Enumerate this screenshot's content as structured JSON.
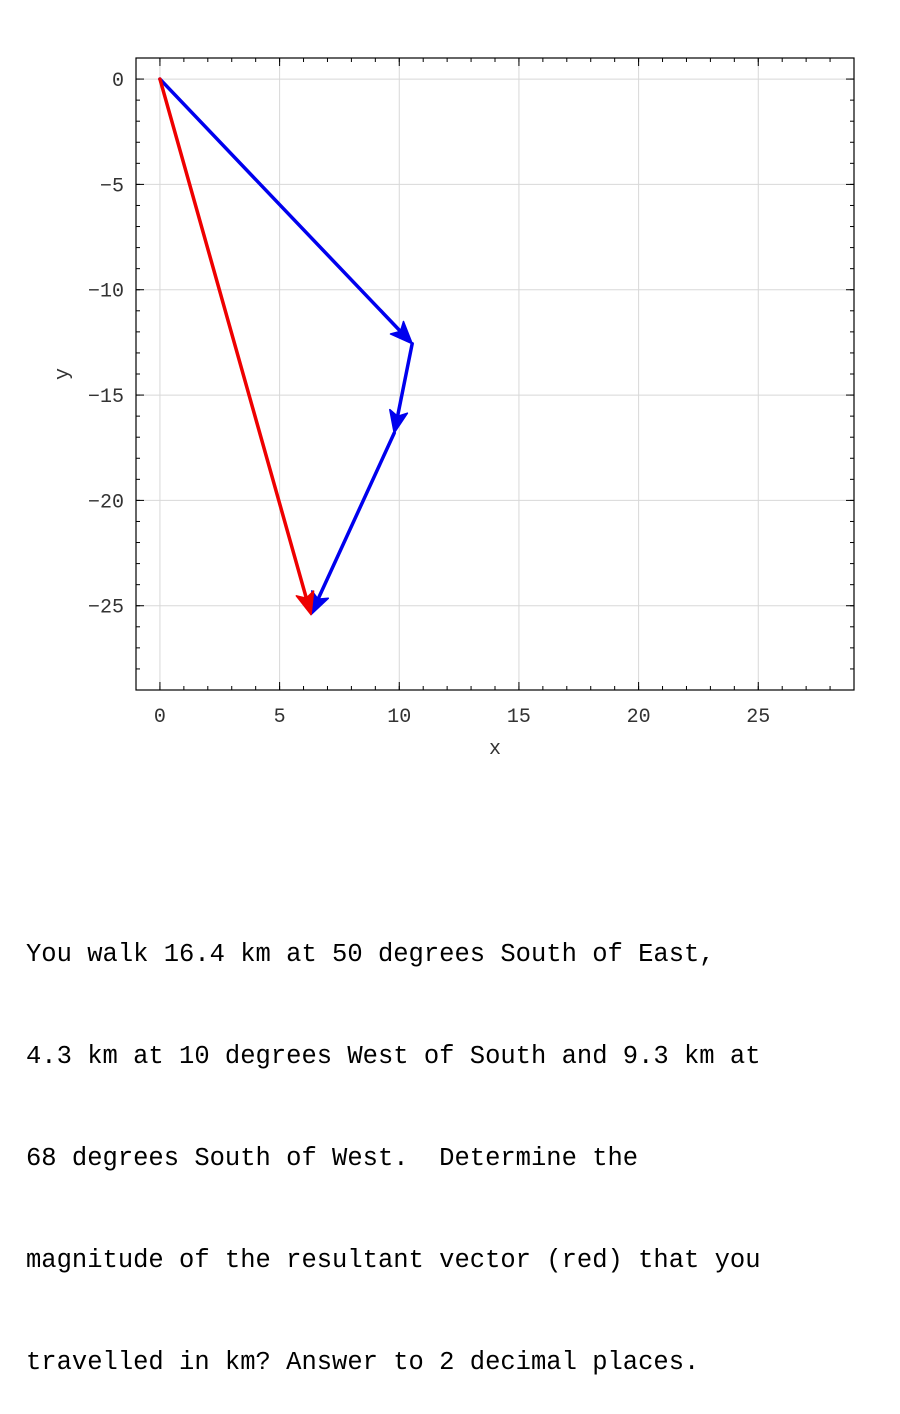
{
  "chart_data": {
    "type": "vector-diagram",
    "xlabel": "x",
    "ylabel": "y",
    "xlim": [
      -1,
      29
    ],
    "ylim": [
      -29,
      1
    ],
    "xticks": [
      0,
      5,
      10,
      15,
      20,
      25
    ],
    "yticks": [
      0,
      -5,
      -10,
      -15,
      -20,
      -25
    ],
    "grid": true,
    "vectors": [
      {
        "color": "#0000ee",
        "from": [
          0,
          0
        ],
        "to": [
          10.54,
          -12.56
        ]
      },
      {
        "color": "#0000ee",
        "from": [
          10.54,
          -12.56
        ],
        "to": [
          9.79,
          -16.8
        ]
      },
      {
        "color": "#0000ee",
        "from": [
          9.79,
          -16.8
        ],
        "to": [
          6.31,
          -25.42
        ]
      },
      {
        "color": "#ee0000",
        "from": [
          0,
          0
        ],
        "to": [
          6.31,
          -25.42
        ]
      }
    ]
  },
  "question": {
    "lines": [
      "You walk 16.4 km at 50 degrees South of East,",
      "4.3 km at 10 degrees West of South and 9.3 km at",
      "68 degrees South of West.  Determine the",
      "magnitude of the resultant vector (red) that you",
      "travelled in km? Answer to 2 decimal places."
    ]
  }
}
